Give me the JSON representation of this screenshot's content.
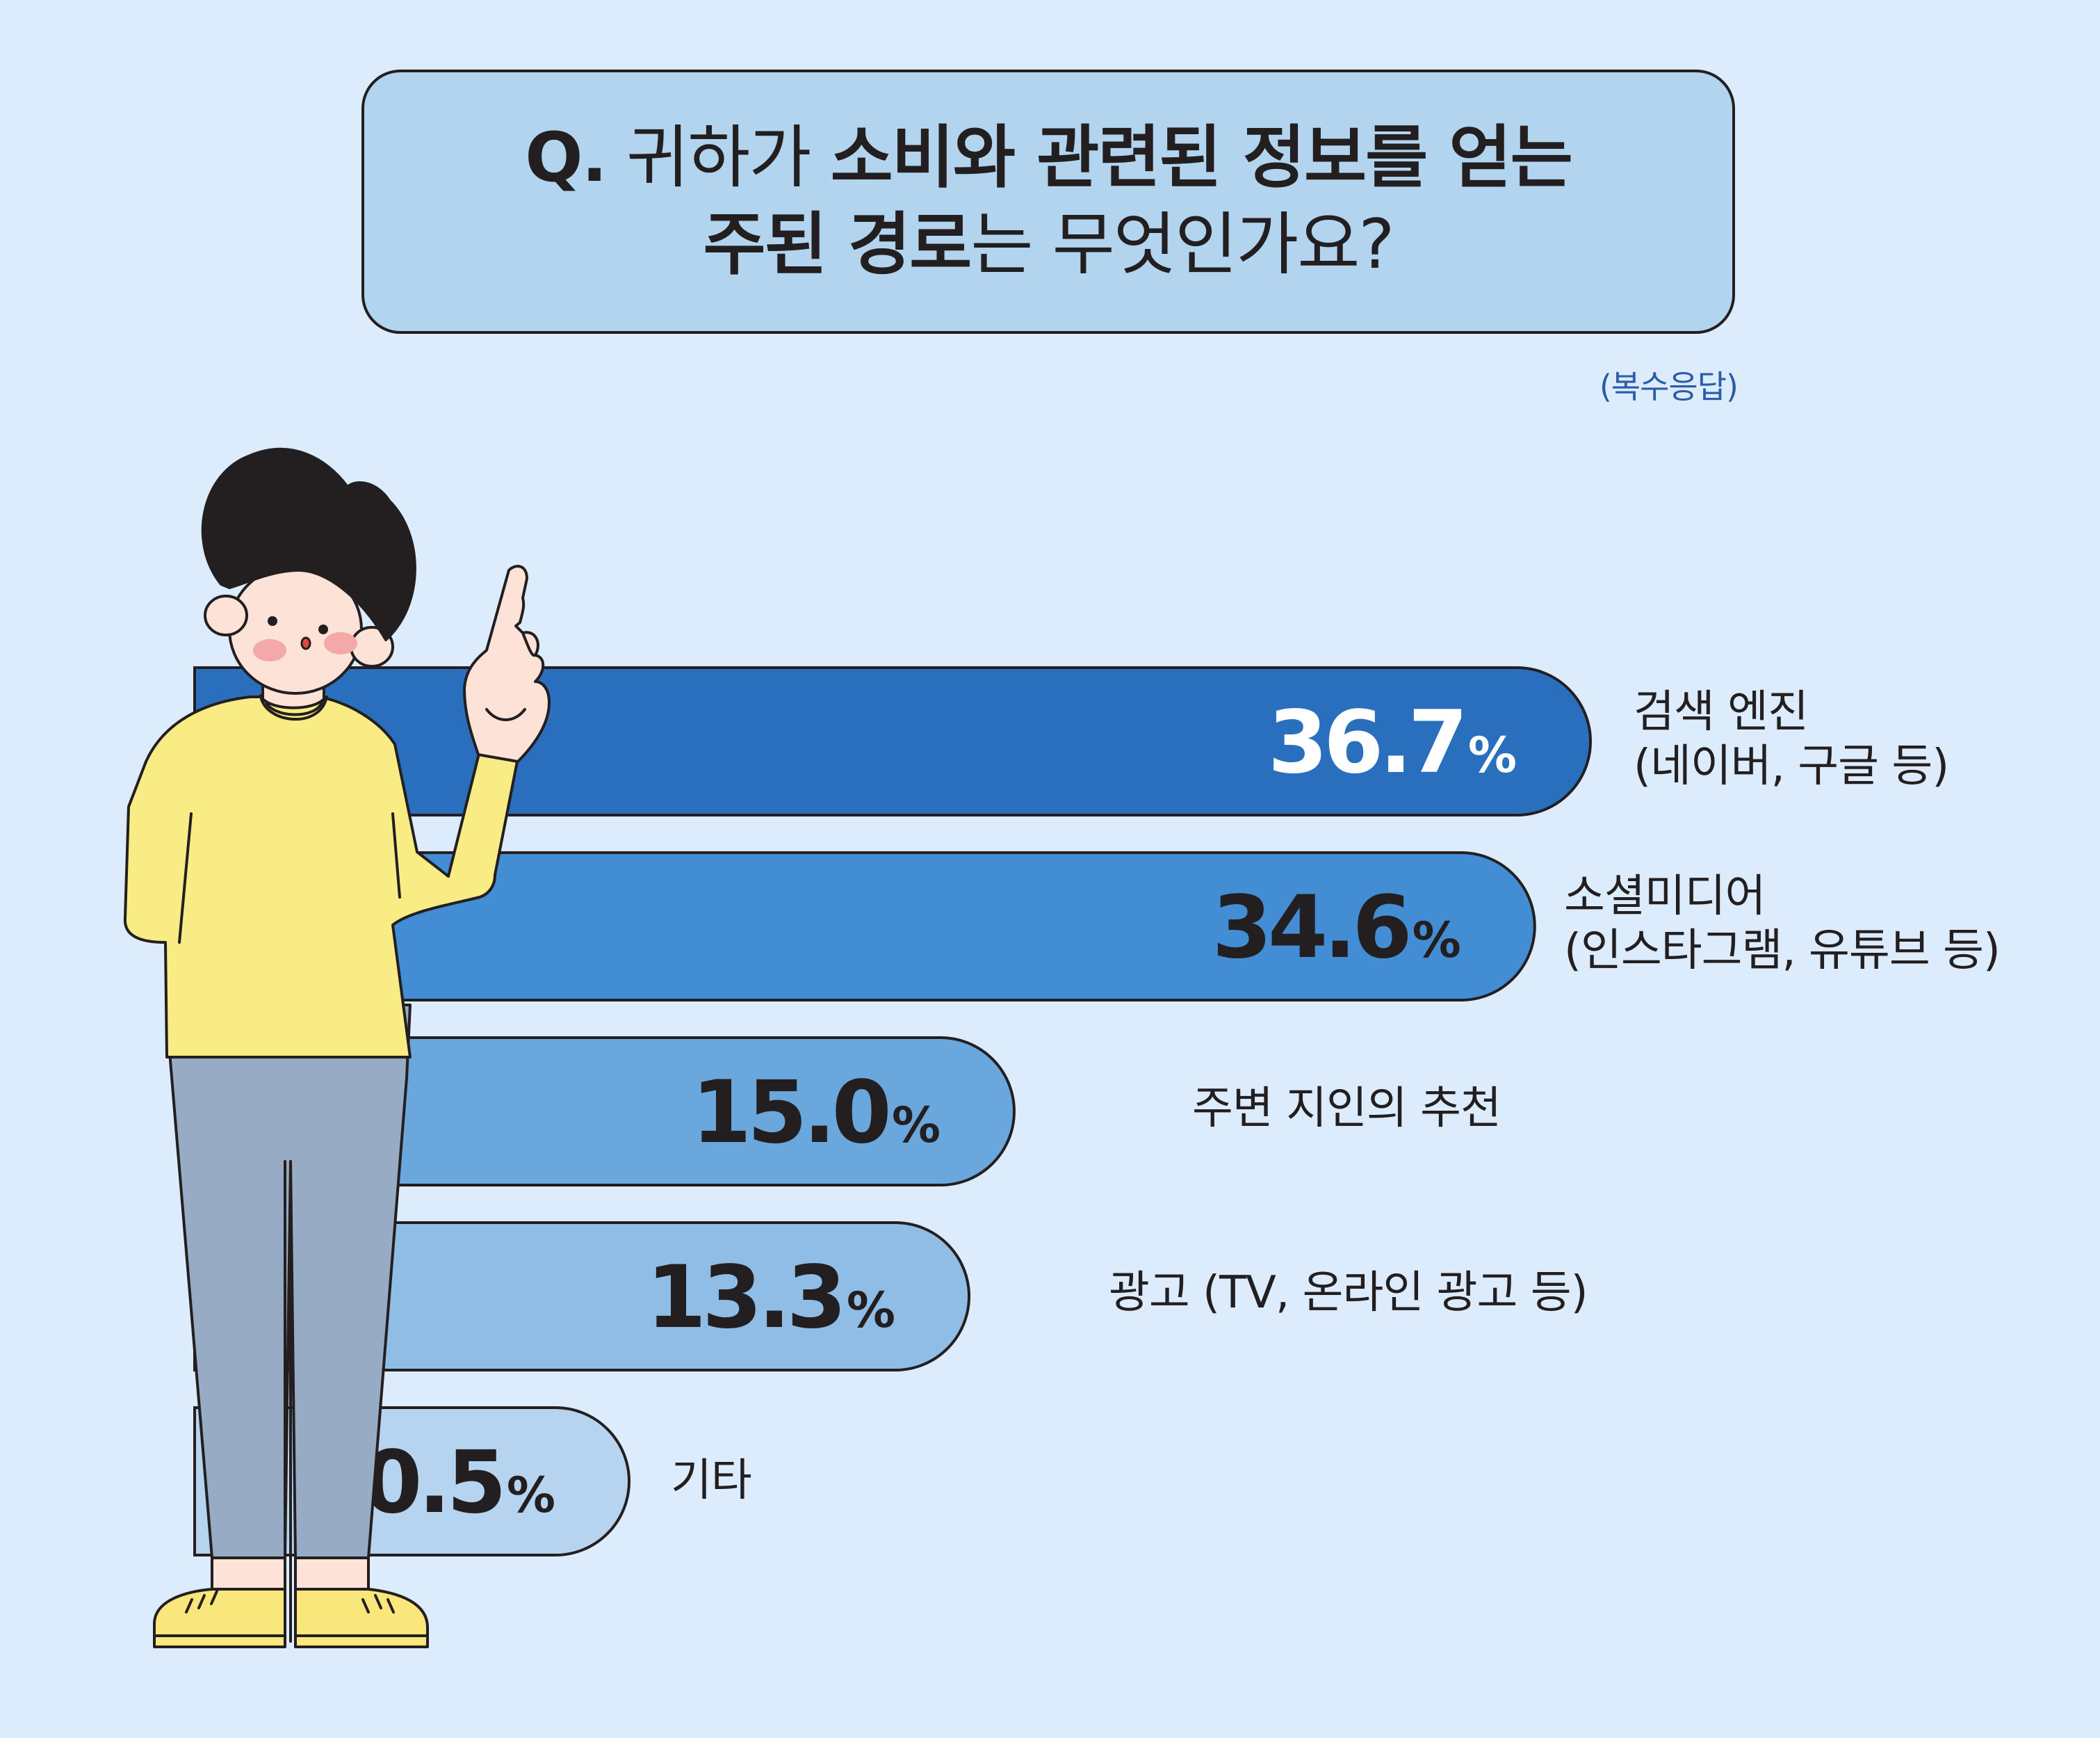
{
  "title": {
    "q": "Q.",
    "l1_a": "귀하가",
    "l1_b": "소비와 관련된 정보를 얻는",
    "l2_a": "주된 경로",
    "l2_b": "는 무엇인가요?"
  },
  "note": "(복수응답)",
  "colors": {
    "background": "#dcecfd",
    "title_box": "#b3d4ee",
    "outline": "#231f20",
    "bars": [
      "#2a6fbe",
      "#428dd4",
      "#6aa7dd",
      "#8fbde6",
      "#b6d4ef"
    ],
    "value_text": [
      "#ffffff",
      "#231f20",
      "#231f20",
      "#231f20",
      "#231f20"
    ]
  },
  "chart_data": {
    "type": "bar",
    "orientation": "horizontal",
    "unit": "%",
    "categories": [
      [
        "검색 엔진",
        "(네이버, 구글 등)"
      ],
      [
        "소셜미디어",
        "(인스타그램, 유튜브 등)"
      ],
      [
        "주변 지인의 추천"
      ],
      [
        "광고 (TV, 온라인 광고 등)"
      ],
      [
        "기타"
      ]
    ],
    "values": [
      36.7,
      34.6,
      15.0,
      13.3,
      0.5
    ],
    "value_labels": [
      "36.7",
      "34.6",
      "15.0",
      "13.3",
      "0.5"
    ],
    "percent_sign": "%"
  }
}
